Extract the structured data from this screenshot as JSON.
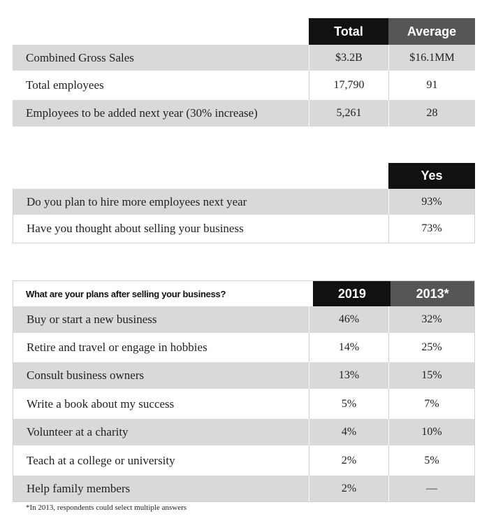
{
  "table1": {
    "headers": [
      "Total",
      "Average"
    ],
    "rows": [
      {
        "label": "Combined Gross Sales",
        "values": [
          "$3.2B",
          "$16.1MM"
        ]
      },
      {
        "label": "Total employees",
        "values": [
          "17,790",
          "91"
        ]
      },
      {
        "label": "Employees to be added next year (30% increase)",
        "values": [
          "5,261",
          "28"
        ]
      }
    ]
  },
  "table2": {
    "headers": [
      "Yes"
    ],
    "rows": [
      {
        "label": "Do you plan to hire more employees next year",
        "values": [
          "93%"
        ]
      },
      {
        "label": "Have you thought about selling your business",
        "values": [
          "73%"
        ]
      }
    ]
  },
  "table3": {
    "question": "What are your plans after selling your business?",
    "headers": [
      "2019",
      "2013*"
    ],
    "rows": [
      {
        "label": "Buy or start a new business",
        "values": [
          "46%",
          "32%"
        ]
      },
      {
        "label": "Retire and travel or engage in hobbies",
        "values": [
          "14%",
          "25%"
        ]
      },
      {
        "label": "Consult business owners",
        "values": [
          "13%",
          "15%"
        ]
      },
      {
        "label": "Write a book about my success",
        "values": [
          "5%",
          "7%"
        ]
      },
      {
        "label": "Volunteer at a charity",
        "values": [
          "4%",
          "10%"
        ]
      },
      {
        "label": "Teach at a college or university",
        "values": [
          "2%",
          "5%"
        ]
      },
      {
        "label": "Help family members",
        "values": [
          "2%",
          "—"
        ]
      }
    ]
  },
  "footnote": "*In 2013, respondents could select multiple answers",
  "colors": {
    "header_black": "#111111",
    "header_dark_gray": "#555555",
    "row_shade": "#d9d9d9"
  }
}
